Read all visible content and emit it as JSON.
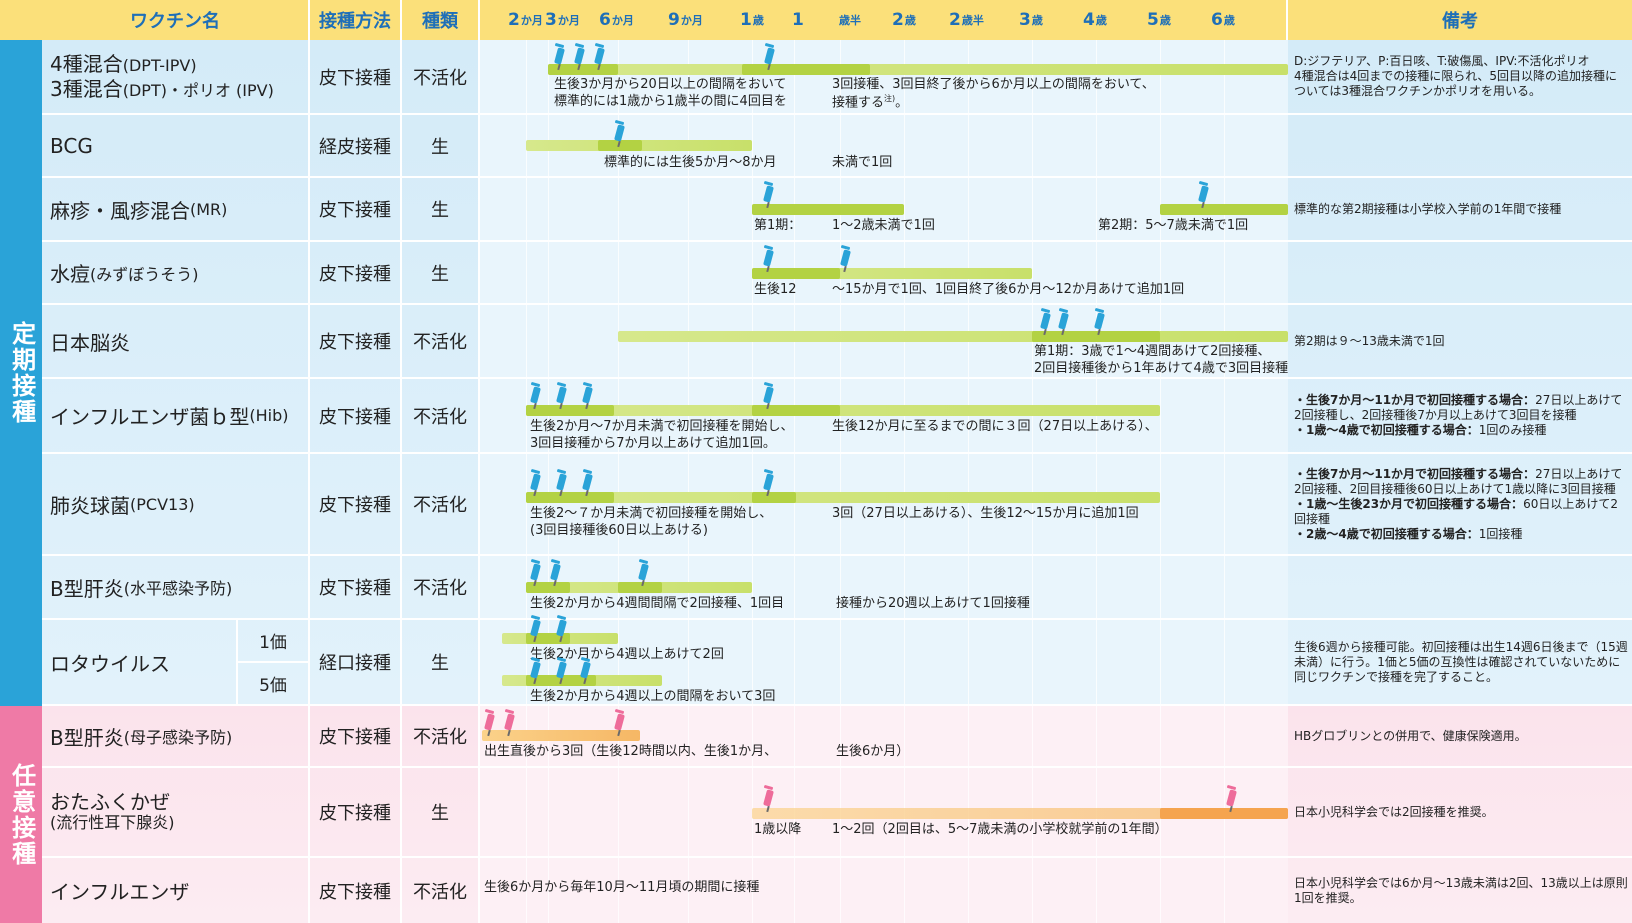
{
  "header": {
    "vaccine": "ワクチン名",
    "method": "接種方法",
    "type": "種類",
    "notes": "備考",
    "ticks": [
      {
        "main": "2",
        "unit": "か月"
      },
      {
        "main": "3",
        "unit": "か月"
      },
      {
        "main": "6",
        "unit": "か月"
      },
      {
        "main": "9",
        "unit": "か月"
      },
      {
        "main": "1",
        "unit": "歳"
      },
      {
        "main": "1",
        "unit": ""
      },
      {
        "main": "",
        "unit": "歳半"
      },
      {
        "main": "2",
        "unit": "歳"
      },
      {
        "main": "2",
        "unit": "歳半"
      },
      {
        "main": "3",
        "unit": "歳"
      },
      {
        "main": "4",
        "unit": "歳"
      },
      {
        "main": "5",
        "unit": "歳"
      },
      {
        "main": "6",
        "unit": "歳"
      }
    ]
  },
  "sections": {
    "routine": "定期接種",
    "optional": "任意接種"
  },
  "rows": [
    {
      "name1": "4種混合",
      "name1_sub": "(DPT-IPV)",
      "name2": "3種混合",
      "name2_sub": "(DPT)・ポリオ (IPV)",
      "method": "皮下接種",
      "type": "不活化",
      "text1": "生後3か月から20日以上の間隔をおいて",
      "text2": "標準的には1歳から1歳半の間に4回目を",
      "text3": "3回接種、3回目終了後から6か月以上の間隔をおいて、",
      "text4": "接種する",
      "note_mark": "注)",
      "note_end": "。",
      "note": "D:ジフテリア、P:百日咳、T:破傷風、IPV:不活化ポリオ",
      "note2": "4種混合は4回までの接種に限られ、5回目以降の追加接種については3種混合ワクチンかポリオを用いる。"
    },
    {
      "name": "BCG",
      "method": "経皮接種",
      "type": "生",
      "text1": "標準的には生後5か月〜8か月",
      "text2": "未満で1回"
    },
    {
      "name": "麻疹・風疹混合",
      "name_sub": "(MR)",
      "method": "皮下接種",
      "type": "生",
      "text1": "第1期：",
      "text2": "1〜2歳未満で1回",
      "text3": "第2期：5〜7歳未満で1回",
      "note": "標準的な第2期接種は小学校入学前の1年間で接種"
    },
    {
      "name": "水痘",
      "name_sub": "(みずぼうそう)",
      "method": "皮下接種",
      "type": "生",
      "text1": "生後12",
      "text2": "〜15か月で1回、1回目終了後6か月〜12か月あけて追加1回"
    },
    {
      "name": "日本脳炎",
      "method": "皮下接種",
      "type": "不活化",
      "text1": "第1期：3歳で1〜4週間あけて2回接種、",
      "text2": "2回目接種後から1年あけて4歳で3回目接種",
      "note": "第2期は９〜13歳未満で1回"
    },
    {
      "name": "インフルエンザ菌ｂ型",
      "name_sub": "(Hib)",
      "method": "皮下接種",
      "type": "不活化",
      "text1": "生後2か月〜7か月未満で初回接種を開始し、",
      "text2": "3回目接種から7か月以上あけて追加1回。",
      "text3": "生後12か月に至るまでの間に３回（27日以上あける）、",
      "notes": [
        {
          "b": "・生後7か月〜11か月で初回接種する場合：",
          "t": "27日以上あけて2回接種し、2回接種後7か月以上あけて3回目を接種"
        },
        {
          "b": "・1歳〜4歳で初回接種する場合：",
          "t": "1回のみ接種"
        }
      ]
    },
    {
      "name": "肺炎球菌",
      "name_sub": "(PCV13)",
      "method": "皮下接種",
      "type": "不活化",
      "text1": "生後2〜７か月未満で初回接種を開始し、",
      "text2": "(3回目接種後60日以上あける)",
      "text3": "3回（27日以上あける）、生後12〜15か月に追加1回",
      "notes": [
        {
          "b": "・生後7か月〜11か月で初回接種する場合：",
          "t": "27日以上あけて2回接種、2回目接種後60日以上あけて1歳以降に3回目接種"
        },
        {
          "b": "・1歳〜生後23か月で初回接種する場合：",
          "t": "60日以上あけて2回接種"
        },
        {
          "b": "・2歳〜4歳で初回接種する場合：",
          "t": "1回接種"
        }
      ]
    },
    {
      "name": "B型肝炎",
      "name_sub": "(水平感染予防)",
      "method": "皮下接種",
      "type": "不活化",
      "text1": "生後2か月から4週間間隔で2回接種、1回目",
      "text2": "接種から20週以上あけて1回接種"
    },
    {
      "name": "ロタウイルス",
      "method": "経口接種",
      "type": "生",
      "sub1": "1価",
      "sub2": "5価",
      "text1": "生後2か月から4週以上あけて2回",
      "text2": "生後2か月から4週以上の間隔をおいて3回",
      "note": "生後6週から接種可能。初回接種は出生14週6日後まで（15週未満）に行う。1価と5価の互換性は確認されていないために同じワクチンで接種を完了すること。"
    },
    {
      "name": "B型肝炎",
      "name_sub": "(母子感染予防)",
      "method": "皮下接種",
      "type": "不活化",
      "text1": "出生直後から3回（生後12時間以内、生後1か月、",
      "text2": "生後6か月）",
      "note": "HBグロブリンとの併用で、健康保険適用。"
    },
    {
      "name": "おたふくかぜ",
      "name_sub": "(流行性耳下腺炎)",
      "method": "皮下接種",
      "type": "生",
      "text1": "1歳以降",
      "text2": "1〜2回（2回目は、5〜7歳未満の小学校就学前の1年間）",
      "note": "日本小児科学会では2回接種を推奨。"
    },
    {
      "name": "インフルエンザ",
      "method": "皮下接種",
      "type": "不活化",
      "text1": "生後6か月から毎年10月〜11月頃の期間に接種",
      "note": "日本小児科学会では6か月〜13歳未満は2回、13歳以上は原則1回を推奨。"
    }
  ],
  "colors": {
    "header": "#fbe07a",
    "header_text": "#1e6fb8",
    "routine_side": "#2aa3d8",
    "optional_side": "#ef7aa6",
    "routine_bg": "#cfe8f7",
    "optional_bg": "#fbdde8",
    "bar_green": "#c8e06a",
    "bar_orange": "#f6b765",
    "syringe_blue": "#2aa3d8",
    "syringe_pink": "#ee6c9a"
  }
}
